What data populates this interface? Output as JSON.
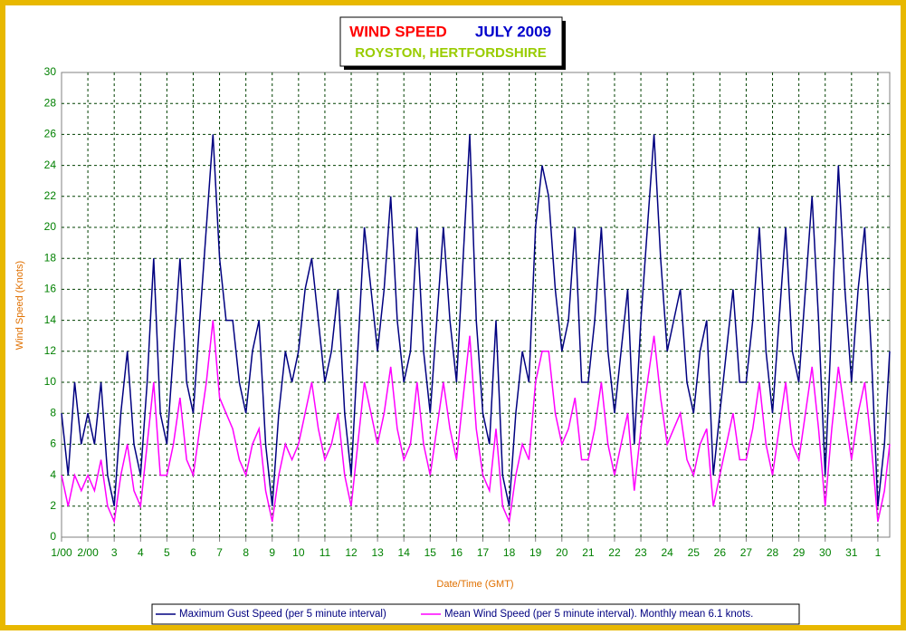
{
  "chart_data": {
    "type": "line",
    "title": "WIND SPEED",
    "title_month": "JULY 2009",
    "subtitle": "ROYSTON, HERTFORDSHIRE",
    "ylabel": "Wind Speed (Knots)",
    "xlabel": "Date/Time (GMT)",
    "xlim": [
      1,
      32.45
    ],
    "ylim": [
      0,
      30
    ],
    "yticks": [
      0,
      2,
      4,
      6,
      8,
      10,
      12,
      14,
      16,
      18,
      20,
      22,
      24,
      26,
      28,
      30
    ],
    "xticks": [
      {
        "value": 1,
        "label": "1/00"
      },
      {
        "value": 2,
        "label": "2/00"
      },
      3,
      4,
      5,
      6,
      7,
      8,
      9,
      10,
      11,
      12,
      13,
      14,
      15,
      16,
      17,
      18,
      19,
      20,
      21,
      22,
      23,
      24,
      25,
      26,
      27,
      28,
      29,
      30,
      31,
      {
        "value": 32,
        "label": "1"
      }
    ],
    "grid": true,
    "legend": "bottom",
    "x": [
      1,
      1.25,
      1.5,
      1.75,
      2,
      2.25,
      2.5,
      2.75,
      3,
      3.25,
      3.5,
      3.75,
      4,
      4.25,
      4.5,
      4.75,
      5,
      5.25,
      5.5,
      5.75,
      6,
      6.25,
      6.5,
      6.75,
      7,
      7.25,
      7.5,
      7.75,
      8,
      8.25,
      8.5,
      8.75,
      9,
      9.25,
      9.5,
      9.75,
      10,
      10.25,
      10.5,
      10.75,
      11,
      11.25,
      11.5,
      11.75,
      12,
      12.25,
      12.5,
      12.75,
      13,
      13.25,
      13.5,
      13.75,
      14,
      14.25,
      14.5,
      14.75,
      15,
      15.25,
      15.5,
      15.75,
      16,
      16.25,
      16.5,
      16.75,
      17,
      17.25,
      17.5,
      17.75,
      18,
      18.25,
      18.5,
      18.75,
      19,
      19.25,
      19.5,
      19.75,
      20,
      20.25,
      20.5,
      20.75,
      21,
      21.25,
      21.5,
      21.75,
      22,
      22.25,
      22.5,
      22.75,
      23,
      23.25,
      23.5,
      23.75,
      24,
      24.25,
      24.5,
      24.75,
      25,
      25.25,
      25.5,
      25.75,
      26,
      26.25,
      26.5,
      26.75,
      27,
      27.25,
      27.5,
      27.75,
      28,
      28.25,
      28.5,
      28.75,
      29,
      29.25,
      29.5,
      29.75,
      30,
      30.25,
      30.5,
      30.75,
      31,
      31.25,
      31.5,
      31.75,
      32,
      32.25,
      32.45
    ],
    "series": [
      {
        "name": "Maximum Gust Speed (per 5 minute interval)",
        "color": "#000080",
        "values": [
          8,
          4,
          10,
          6,
          8,
          6,
          10,
          4,
          2,
          8,
          12,
          6,
          4,
          10,
          18,
          8,
          6,
          12,
          18,
          10,
          8,
          14,
          20,
          26,
          18,
          14,
          14,
          10,
          8,
          12,
          14,
          6,
          2,
          8,
          12,
          10,
          12,
          16,
          18,
          14,
          10,
          12,
          16,
          8,
          4,
          12,
          20,
          16,
          12,
          16,
          22,
          14,
          10,
          12,
          20,
          12,
          8,
          14,
          20,
          14,
          10,
          18,
          26,
          14,
          8,
          6,
          14,
          4,
          2,
          8,
          12,
          10,
          20,
          24,
          22,
          16,
          12,
          14,
          20,
          10,
          10,
          14,
          20,
          12,
          8,
          12,
          16,
          6,
          14,
          20,
          26,
          18,
          12,
          14,
          16,
          10,
          8,
          12,
          14,
          4,
          8,
          12,
          16,
          10,
          10,
          14,
          20,
          12,
          8,
          14,
          20,
          12,
          10,
          16,
          22,
          14,
          4,
          14,
          24,
          16,
          10,
          16,
          20,
          12,
          2,
          6,
          12
        ]
      },
      {
        "name": "Mean Wind Speed (per 5 minute interval). Monthly mean 6.1 knots.",
        "color": "#ff00ff",
        "values": [
          4,
          2,
          4,
          3,
          4,
          3,
          5,
          2,
          1,
          4,
          6,
          3,
          2,
          6,
          10,
          4,
          4,
          6,
          9,
          5,
          4,
          7,
          10,
          14,
          9,
          8,
          7,
          5,
          4,
          6,
          7,
          3,
          1,
          4,
          6,
          5,
          6,
          8,
          10,
          7,
          5,
          6,
          8,
          4,
          2,
          6,
          10,
          8,
          6,
          8,
          11,
          7,
          5,
          6,
          10,
          6,
          4,
          7,
          10,
          7,
          5,
          9,
          13,
          7,
          4,
          3,
          7,
          2,
          1,
          4,
          6,
          5,
          10,
          12,
          12,
          8,
          6,
          7,
          9,
          5,
          5,
          7,
          10,
          6,
          4,
          6,
          8,
          3,
          7,
          10,
          13,
          9,
          6,
          7,
          8,
          5,
          4,
          6,
          7,
          2,
          4,
          6,
          8,
          5,
          5,
          7,
          10,
          6,
          4,
          7,
          10,
          6,
          5,
          8,
          11,
          7,
          2,
          7,
          11,
          8,
          5,
          8,
          10,
          6,
          1,
          3,
          6
        ]
      }
    ]
  }
}
